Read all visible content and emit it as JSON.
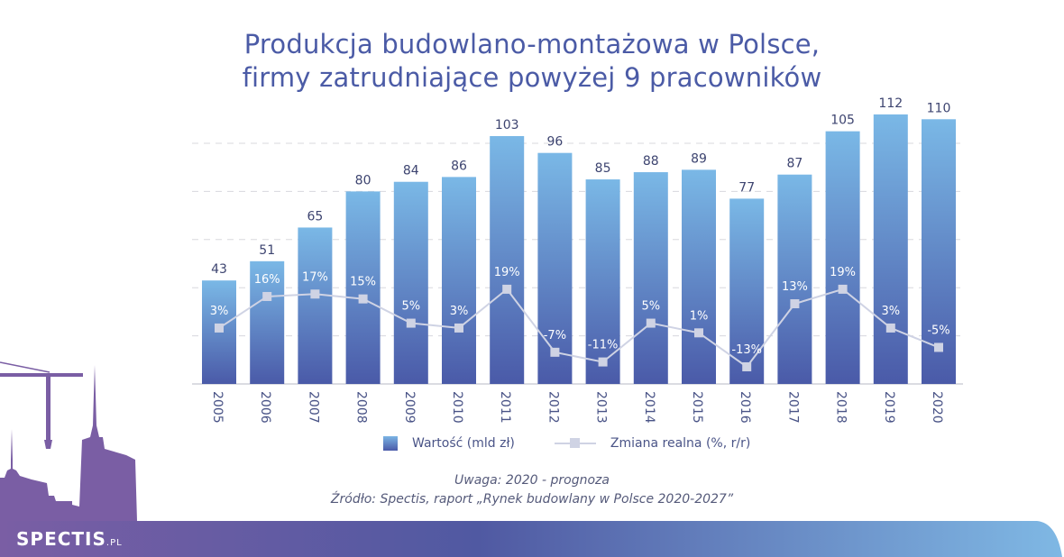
{
  "title_lines": [
    "Produkcja budowlano-montażowa w Polsce,",
    "firmy zatrudniające powyżej 9 pracowników"
  ],
  "legend": {
    "bars": "Wartość (mld zł)",
    "line": "Zmiana realna (%, r/r)"
  },
  "note": "Uwaga: 2020 - prognoza",
  "source": "Źródło: Spectis, raport „Rynek budowlany w Polsce 2020-2027”",
  "logo": {
    "main": "SPECTIS",
    "suffix": ".PL"
  },
  "colors": {
    "title": "#4b5ba6",
    "bar_top": "#7ab8e6",
    "bar_bottom": "#4a5aa8",
    "line": "#cfd3e4"
  },
  "chart_data": {
    "type": "bar",
    "title": "Produkcja budowlano-montażowa w Polsce, firmy zatrudniające powyżej 9 pracowników",
    "categories": [
      "2005",
      "2006",
      "2007",
      "2008",
      "2009",
      "2010",
      "2011",
      "2012",
      "2013",
      "2014",
      "2015",
      "2016",
      "2017",
      "2018",
      "2019",
      "2020"
    ],
    "series": [
      {
        "name": "Wartość (mld zł)",
        "type": "bar",
        "values": [
          43,
          51,
          65,
          80,
          84,
          86,
          103,
          96,
          85,
          88,
          89,
          77,
          87,
          105,
          112,
          110
        ]
      },
      {
        "name": "Zmiana realna (%, r/r)",
        "type": "line",
        "values": [
          3,
          16,
          17,
          15,
          5,
          3,
          19,
          -7,
          -11,
          5,
          1,
          -13,
          13,
          19,
          3,
          -5
        ]
      }
    ],
    "ylim": [
      0,
      110
    ],
    "y2lim": [
      -27,
      40
    ],
    "grid": true,
    "legend_position": "bottom"
  }
}
